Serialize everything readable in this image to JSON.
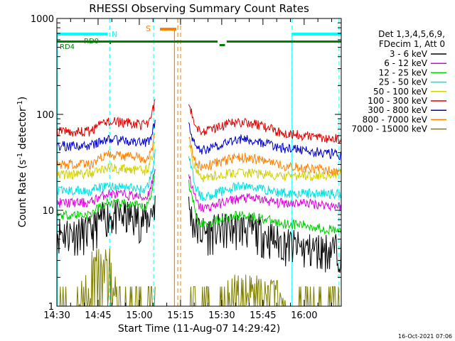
{
  "chart_data": {
    "type": "line",
    "title": "RHESSI Observing Summary Count Rates",
    "xlabel": "Start Time (11-Aug-07 14:29:42)",
    "ylabel": "Count Rate (s⁻¹ detector⁻¹)",
    "ylabel_parts": {
      "main": "Count Rate (s",
      "sup1": "-1",
      "mid": " detector",
      "sup2": "-1",
      "end": ")"
    },
    "yscale": "log",
    "ylim": [
      1,
      1000
    ],
    "xlim_minutes": [
      0,
      100
    ],
    "x_ticks": [
      {
        "minute": 0,
        "label": "14:30"
      },
      {
        "minute": 15,
        "label": "14:45"
      },
      {
        "minute": 30,
        "label": "15:00"
      },
      {
        "minute": 45,
        "label": "15:15"
      },
      {
        "minute": 60,
        "label": "15:30"
      },
      {
        "minute": 75,
        "label": "15:45"
      },
      {
        "minute": 90,
        "label": "16:00"
      }
    ],
    "y_ticks": [
      {
        "value": 1,
        "label": "1"
      },
      {
        "value": 10,
        "label": "10"
      },
      {
        "value": 100,
        "label": "100"
      },
      {
        "value": 1000,
        "label": "1000"
      }
    ],
    "legend_header": [
      "Det 1,3,4,5,6,9,",
      "FDecim 1, Att 0"
    ],
    "legend_placement": "right",
    "series": [
      {
        "name": "3 - 6 keV",
        "color": "#000000",
        "values": [
          6,
          9,
          6,
          5,
          6,
          4,
          4
        ]
      },
      {
        "name": "6 - 12 keV",
        "color": "#e000e0",
        "values": [
          12,
          15,
          10,
          11,
          12,
          12,
          11
        ]
      },
      {
        "name": "12 - 25 keV",
        "color": "#00d000",
        "values": [
          9,
          12,
          7,
          7,
          8,
          7,
          6
        ]
      },
      {
        "name": "25 - 50 keV",
        "color": "#00e0e0",
        "values": [
          16,
          18,
          13,
          15,
          16,
          15,
          15
        ]
      },
      {
        "name": "50 - 100 keV",
        "color": "#d0d000",
        "values": [
          24,
          28,
          22,
          20,
          22,
          23,
          24
        ]
      },
      {
        "name": "100 - 300 keV",
        "color": "#e00000",
        "values": [
          66,
          85,
          65,
          70,
          75,
          60,
          55
        ]
      },
      {
        "name": "300 - 800 keV",
        "color": "#0000d0",
        "values": [
          47,
          55,
          40,
          45,
          50,
          42,
          38
        ]
      },
      {
        "name": "800 - 7000 keV",
        "color": "#ff8000",
        "values": [
          30,
          38,
          28,
          30,
          32,
          28,
          25
        ]
      },
      {
        "name": "7000 - 15000 keV",
        "color": "#808000",
        "values": [
          1,
          2,
          1,
          1,
          2,
          1,
          1
        ]
      }
    ],
    "flags": [
      {
        "label": "N",
        "color": "#00ffff"
      },
      {
        "label": "S",
        "color": "#ff8000"
      },
      {
        "label": "RD0",
        "color": "#008000"
      },
      {
        "label": "RD4",
        "color": "#008000"
      }
    ],
    "timestamp": "16-Oct-2021 07:06"
  }
}
